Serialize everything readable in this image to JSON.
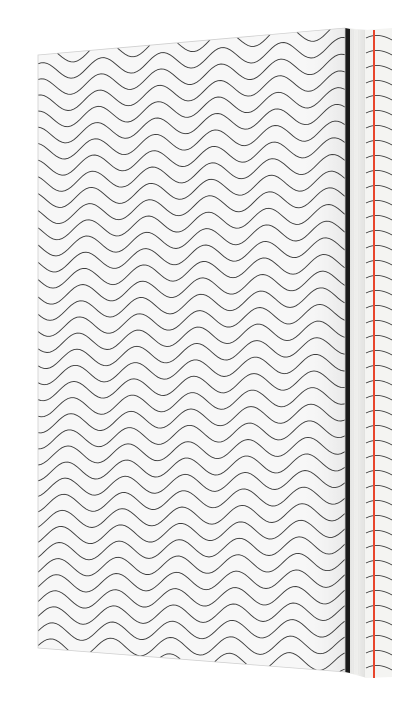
{
  "product_photo": {
    "subject": "hardcover-book",
    "view": "three-quarter-standing",
    "background_color": "#ffffff",
    "cover": {
      "base_color": "#f7f7f7",
      "pattern": "wavy-lines",
      "line_color": "#3a3a3a"
    },
    "spine": {
      "base_color": "#f4f4f2",
      "pattern": "wavy-lines",
      "accent_stripe_color": "#e8452c"
    },
    "page_block_color": "#e6e6e4",
    "edge_shadow_color": "#1a1a1a"
  }
}
